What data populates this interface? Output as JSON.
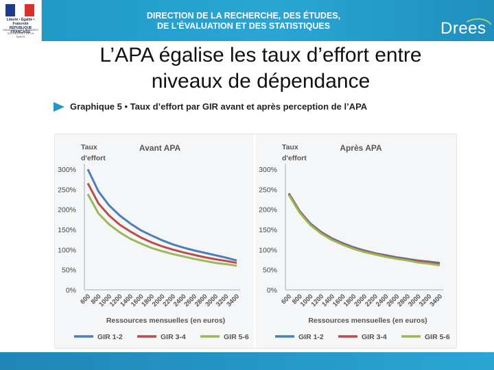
{
  "header": {
    "logo_line1": "Liberté • Égalité • Fraternité",
    "logo_line2": "RÉPUBLIQUE FRANÇAISE",
    "logo_sub": "MINISTÈRE DES AFFAIRES SOCIALES ET DE LA SANTÉ",
    "title_line1": "DIRECTION DE LA RECHERCHE, DES ÉTUDES,",
    "title_line2": "DE L'ÉVALUATION ET DES STATISTIQUES",
    "brand": "Drees"
  },
  "slide": {
    "title_line1": "L’APA égalise les taux d’effort entre",
    "title_line2": "niveaux de dépendance",
    "subtitle": "Graphique 5 • Taux d’effort par GIR avant et après perception de l’APA"
  },
  "colors": {
    "header_blue": "#1f97c6",
    "gir12": "#4a7ebb",
    "gir34": "#be4b48",
    "gir56": "#98b954"
  },
  "chart_data": [
    {
      "type": "line",
      "title": "Avant APA",
      "ylabel_line1": "Taux",
      "ylabel_line2": "d'effort",
      "xlabel": "Ressources mensuelles (en euros)",
      "ylim": [
        0,
        300
      ],
      "ytick_labels": [
        "300%",
        "250%",
        "200%",
        "150%",
        "100%",
        "50%",
        "0%"
      ],
      "x": [
        600,
        800,
        1000,
        1200,
        1400,
        1600,
        1800,
        2000,
        2200,
        2400,
        2600,
        2800,
        3000,
        3200,
        3400
      ],
      "x_tick_labels": [
        "600",
        "800",
        "1000",
        "1200",
        "1400",
        "1600",
        "1800",
        "2000",
        "2200",
        "2400",
        "2600",
        "2800",
        "3000",
        "3200",
        "3400"
      ],
      "legend_placement": "bottom",
      "series": [
        {
          "name": "GIR 1-2",
          "values": [
            300,
            245,
            210,
            185,
            165,
            148,
            135,
            123,
            113,
            105,
            98,
            92,
            86,
            80,
            73
          ]
        },
        {
          "name": "GIR 3-4",
          "values": [
            265,
            215,
            185,
            162,
            145,
            130,
            118,
            108,
            100,
            93,
            87,
            81,
            76,
            72,
            67
          ]
        },
        {
          "name": "GIR 5-6",
          "values": [
            238,
            190,
            163,
            143,
            127,
            115,
            104,
            96,
            89,
            83,
            77,
            72,
            67,
            64,
            60
          ]
        }
      ]
    },
    {
      "type": "line",
      "title": "Après APA",
      "ylabel_line1": "Taux",
      "ylabel_line2": "d'effort",
      "xlabel": "Ressources mensuelles (en euros)",
      "ylim": [
        0,
        300
      ],
      "ytick_labels": [
        "300%",
        "250%",
        "200%",
        "150%",
        "100%",
        "50%",
        "0%"
      ],
      "x": [
        600,
        800,
        1000,
        1200,
        1400,
        1600,
        1800,
        2000,
        2200,
        2400,
        2600,
        2800,
        3000,
        3200,
        3400
      ],
      "x_tick_labels": [
        "600",
        "800",
        "1000",
        "1200",
        "1400",
        "1600",
        "1800",
        "2000",
        "2200",
        "2400",
        "2600",
        "2800",
        "3000",
        "3200",
        "3400"
      ],
      "legend_placement": "bottom",
      "series": [
        {
          "name": "GIR 1-2",
          "values": [
            240,
            196,
            165,
            144,
            128,
            116,
            106,
            98,
            91,
            86,
            81,
            77,
            73,
            70,
            67
          ]
        },
        {
          "name": "GIR 3-4",
          "values": [
            238,
            194,
            163,
            142,
            126,
            114,
            104,
            96,
            90,
            84,
            79,
            75,
            71,
            68,
            64
          ]
        },
        {
          "name": "GIR 5-6",
          "values": [
            236,
            192,
            161,
            140,
            124,
            112,
            102,
            94,
            88,
            82,
            77,
            73,
            68,
            65,
            61
          ]
        }
      ]
    }
  ]
}
